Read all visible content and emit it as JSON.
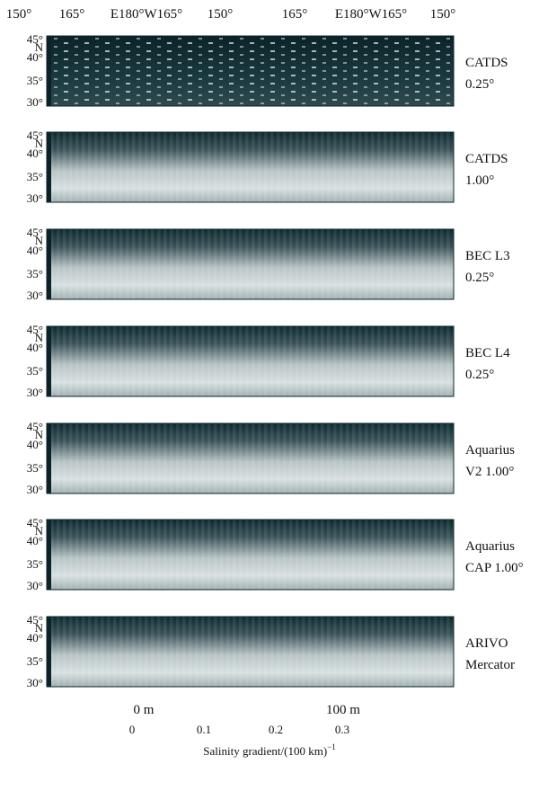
{
  "top_axis": {
    "labels": [
      "150°",
      "165°",
      "E180°W165°",
      "150°",
      "165°",
      "E180°W165°",
      "150°"
    ]
  },
  "lat_labels": [
    "45°",
    "N",
    "40°",
    "35°",
    "30°"
  ],
  "panels": [
    {
      "name": "CATDS",
      "resolution": "0.25°"
    },
    {
      "name": "CATDS",
      "resolution": "1.00°"
    },
    {
      "name": "BEC L3",
      "resolution": "0.25°"
    },
    {
      "name": "BEC L4",
      "resolution": "0.25°"
    },
    {
      "name": "Aquarius",
      "resolution": "V2 1.00°"
    },
    {
      "name": "Aquarius",
      "resolution": "CAP 1.00°"
    },
    {
      "name": "ARIVO",
      "resolution": "Mercator"
    }
  ],
  "depth_labels": [
    "0 m",
    "100 m"
  ],
  "colorbar": {
    "ticks": [
      "0",
      "0.1",
      "0.2",
      "0.3"
    ],
    "label": "Salinity gradient/(100 km)",
    "label_exponent": "−1"
  }
}
